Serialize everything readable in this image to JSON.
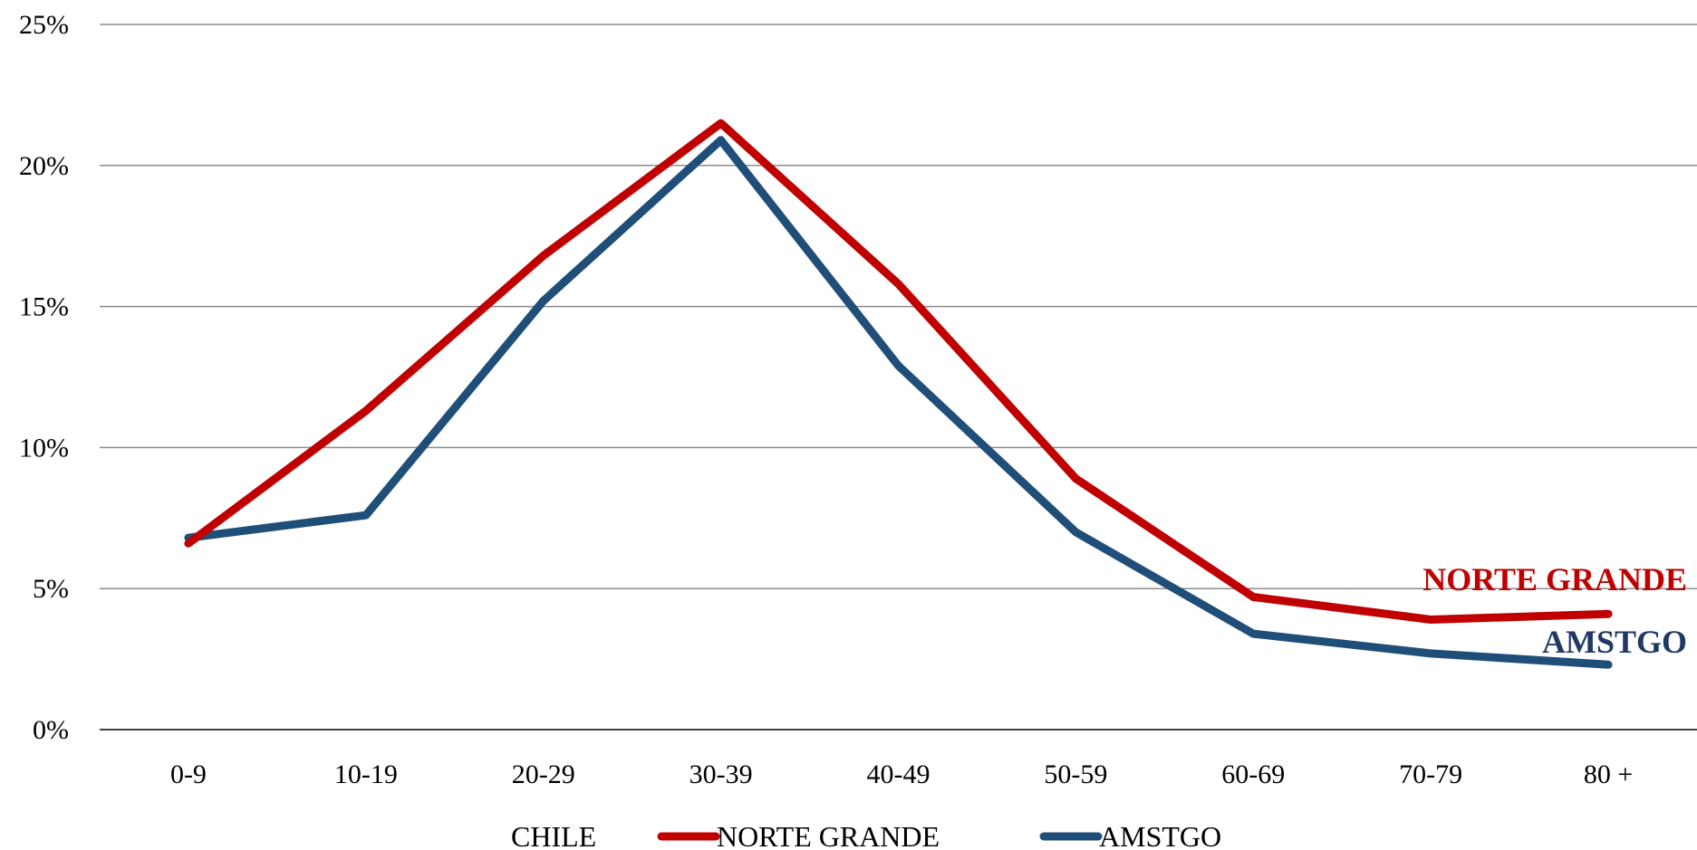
{
  "chart_data": {
    "type": "line",
    "categories": [
      "0-9",
      "10-19",
      "20-29",
      "30-39",
      "40-49",
      "50-59",
      "60-69",
      "70-79",
      "80 +"
    ],
    "y_ticks": [
      "0%",
      "5%",
      "10%",
      "15%",
      "20%",
      "25%"
    ],
    "ylim": [
      0,
      25
    ],
    "grid": true,
    "legend_position": "bottom",
    "legend_title": "CHILE",
    "series": [
      {
        "name": "NORTE GRANDE",
        "color": "#C00000",
        "values": [
          6.6,
          11.3,
          16.8,
          21.5,
          15.8,
          8.9,
          4.7,
          3.9,
          4.1
        ]
      },
      {
        "name": "AMSTGO",
        "color": "#1F4E79",
        "values": [
          6.8,
          7.6,
          15.2,
          20.9,
          12.9,
          7.0,
          3.4,
          2.7,
          2.3
        ]
      }
    ],
    "end_labels": [
      {
        "text": "NORTE GRANDE",
        "color": "#C00000"
      },
      {
        "text": "AMSTGO",
        "color": "#1F3864"
      }
    ]
  }
}
